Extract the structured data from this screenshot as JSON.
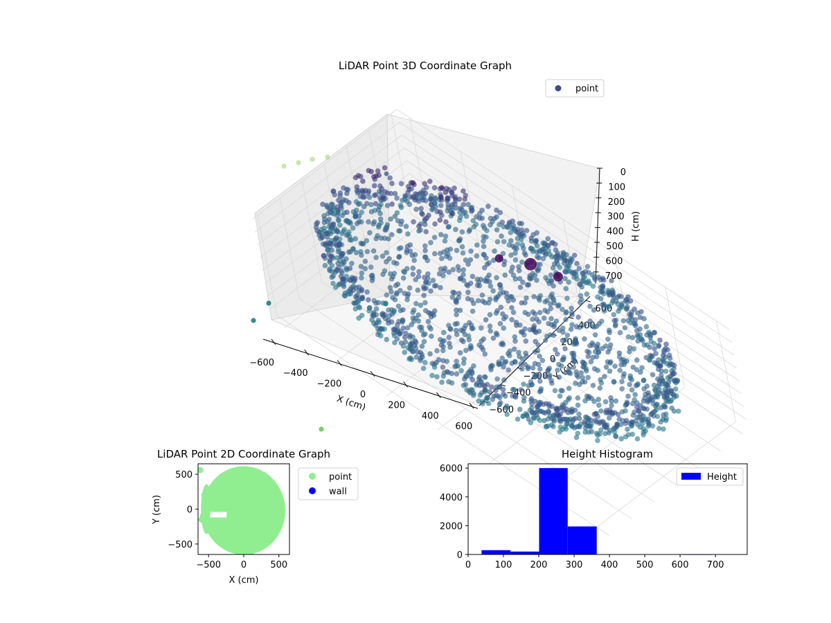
{
  "colors": {
    "point_3d": "#3e4a89",
    "point_2d": "#90ee90",
    "wall": "#0000ff",
    "height_bar": "#0000ff"
  },
  "chart_data": [
    {
      "type": "scatter",
      "projection": "3d",
      "title": "LiDAR Point 3D Coordinate Graph",
      "xlabel": "X (cm)",
      "ylabel": "Y (cm)",
      "zlabel": "H (cm)",
      "x_ticks": [
        -600,
        -400,
        -200,
        0,
        200,
        400,
        600
      ],
      "y_ticks": [
        -600,
        -400,
        -200,
        0,
        200,
        400,
        600
      ],
      "z_ticks": [
        0,
        100,
        200,
        300,
        400,
        500,
        600,
        700
      ],
      "z_inverted": true,
      "colormap": "viridis",
      "grid": true,
      "legend": {
        "placement": "top-right",
        "entries": [
          "point"
        ]
      },
      "outlier_points": [
        {
          "x": -620,
          "y": 560,
          "h": 150
        },
        {
          "x": -560,
          "y": 560,
          "h": 150
        },
        {
          "x": -500,
          "y": 560,
          "h": 150
        },
        {
          "x": -440,
          "y": 560,
          "h": 150
        },
        {
          "x": -640,
          "y": -200,
          "h": 600
        },
        {
          "x": -600,
          "y": -100,
          "h": 560
        },
        {
          "x": 40,
          "y": -30,
          "h": 400
        },
        {
          "x": 200,
          "y": -620,
          "h": 700
        }
      ]
    },
    {
      "type": "scatter",
      "title": "LiDAR Point 2D Coordinate Graph",
      "xlabel": "X (cm)",
      "ylabel": "Y (cm)",
      "x_ticks": [
        -500,
        0,
        500
      ],
      "y_ticks": [
        -500,
        0,
        500
      ],
      "xlim": [
        -650,
        650
      ],
      "ylim": [
        -650,
        650
      ],
      "legend": {
        "placement": "outside-right",
        "entries": [
          "point",
          "wall"
        ]
      },
      "series": [
        {
          "name": "point",
          "points": [
            {
              "x": -620,
              "y": 560
            },
            {
              "x": 100,
              "y": -650
            },
            {
              "x": -560,
              "y": 200
            },
            {
              "x": -580,
              "y": -100
            },
            {
              "x": -600,
              "y": -150
            }
          ]
        },
        {
          "name": "wall",
          "points": []
        }
      ]
    },
    {
      "type": "bar",
      "title": "Height Histogram",
      "x_ticks": [
        0,
        100,
        200,
        300,
        400,
        500,
        600,
        700
      ],
      "y_ticks": [
        0,
        2000,
        4000,
        6000
      ],
      "xlim": [
        0,
        790
      ],
      "ylim": [
        0,
        6300
      ],
      "legend": {
        "placement": "top-right",
        "entries": [
          "Height"
        ]
      },
      "bins": [
        {
          "x0": 38,
          "x1": 120,
          "value": 300
        },
        {
          "x0": 120,
          "x1": 201,
          "value": 200
        },
        {
          "x0": 201,
          "x1": 282,
          "value": 6000
        },
        {
          "x0": 282,
          "x1": 364,
          "value": 1950
        },
        {
          "x0": 364,
          "x1": 445,
          "value": 10
        },
        {
          "x0": 445,
          "x1": 527,
          "value": 5
        },
        {
          "x0": 527,
          "x1": 608,
          "value": 5
        },
        {
          "x0": 608,
          "x1": 690,
          "value": 2
        },
        {
          "x0": 690,
          "x1": 771,
          "value": 4
        }
      ]
    }
  ]
}
